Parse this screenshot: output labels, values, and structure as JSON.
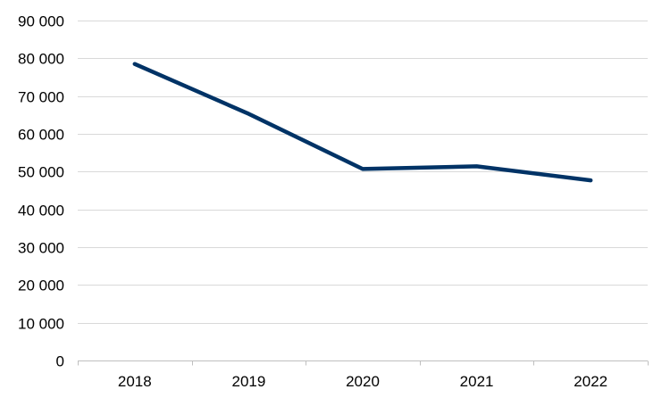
{
  "chart_data": {
    "type": "line",
    "title": "",
    "xlabel": "",
    "ylabel": "",
    "categories": [
      "2018",
      "2019",
      "2020",
      "2021",
      "2022"
    ],
    "series": [
      {
        "values": [
          78500,
          65300,
          50700,
          51400,
          47700
        ],
        "color": "#003366"
      }
    ],
    "ylim": [
      0,
      90000
    ],
    "y_ticks": [
      0,
      10000,
      20000,
      30000,
      40000,
      50000,
      60000,
      70000,
      80000,
      90000
    ],
    "y_tick_labels": [
      "0",
      "10 000",
      "20 000",
      "30 000",
      "40 000",
      "50 000",
      "60 000",
      "70 000",
      "80 000",
      "90 000"
    ],
    "grid": true,
    "gridline_color": "#d9d9d9",
    "legend": "none"
  }
}
